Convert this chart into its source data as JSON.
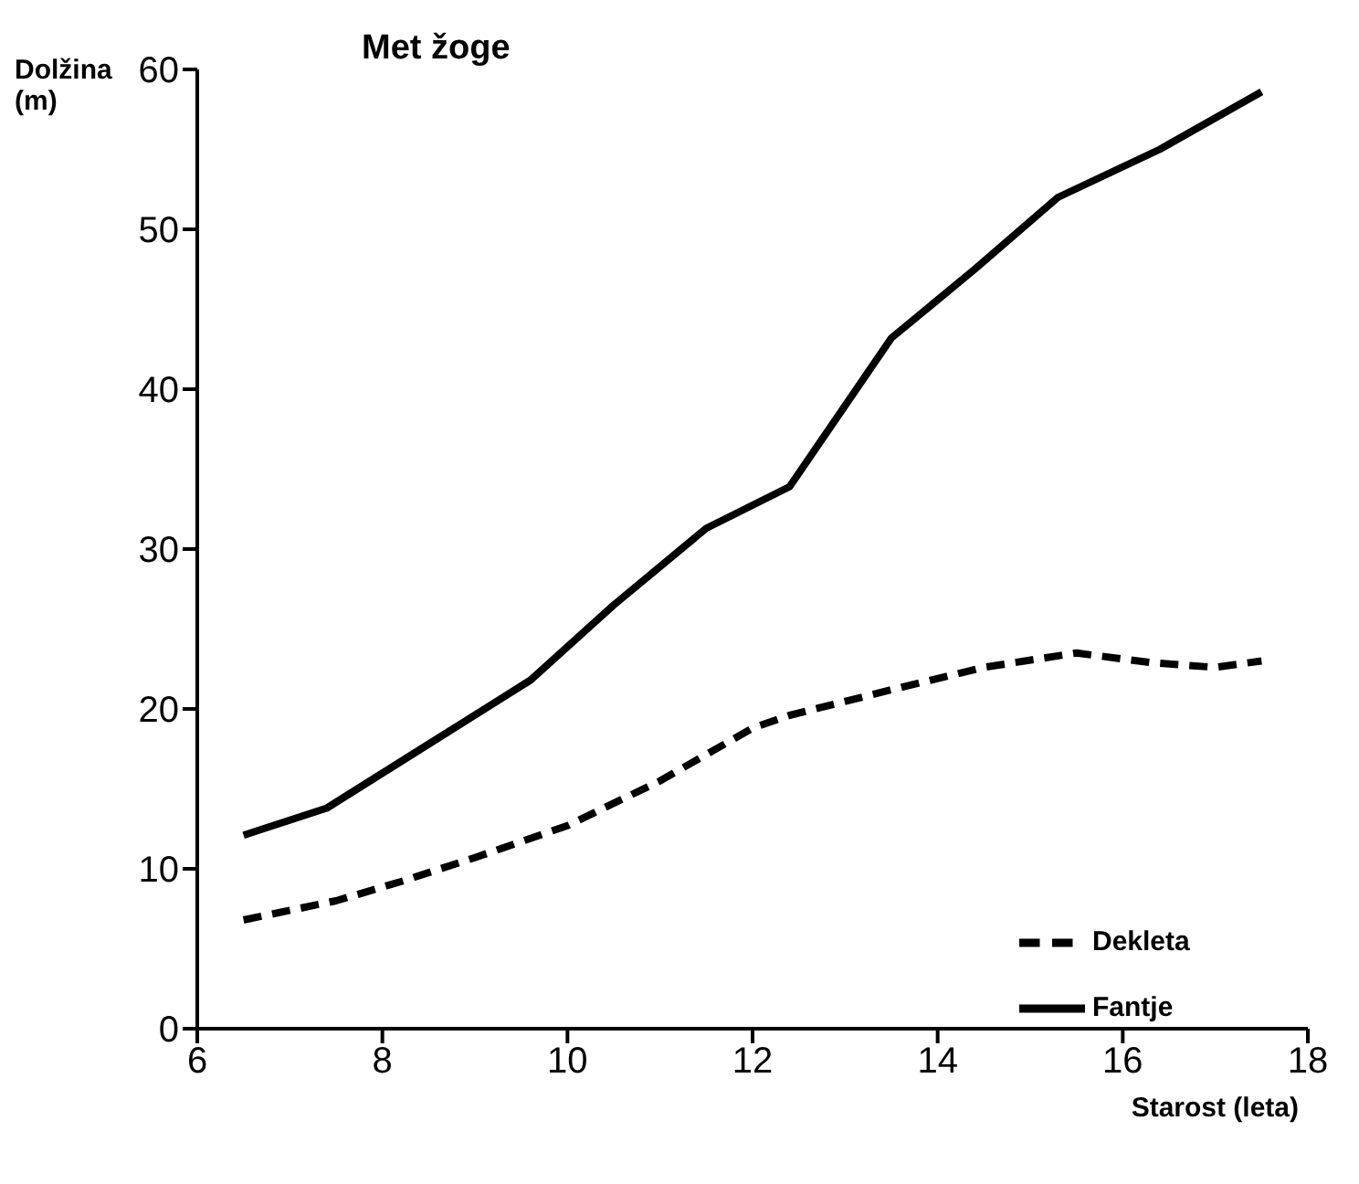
{
  "chart_data": {
    "type": "line",
    "title": "Met žoge",
    "ylabel": "Dolžina (m)",
    "xlabel": "Starost (leta)",
    "xlim": [
      6,
      18
    ],
    "xticks": [
      6,
      8,
      10,
      12,
      14,
      16,
      18
    ],
    "ylim": [
      0,
      60
    ],
    "yticks": [
      0,
      10,
      20,
      30,
      40,
      50,
      60
    ],
    "grid": false,
    "legend": "bottom right",
    "marker": "none",
    "series": [
      {
        "name": "Fantje",
        "color": "#000000",
        "line_style": "solid",
        "x": [
          6.5,
          7.4,
          8.5,
          9.6,
          10.5,
          11.5,
          12.4,
          13.5,
          14.4,
          15.3,
          16.4,
          17.5
        ],
        "values": [
          12.1,
          13.8,
          17.8,
          21.8,
          26.5,
          31.3,
          33.9,
          43.2,
          47.5,
          52,
          55,
          58.6
        ]
      },
      {
        "name": "Dekleta",
        "color": "#000000",
        "line_style": "dashed",
        "x": [
          6.5,
          7.5,
          8.2,
          9,
          10,
          11,
          12,
          12.4,
          13.5,
          14.5,
          15.5,
          16.3,
          17,
          17.5
        ],
        "values": [
          6.8,
          8,
          9.2,
          10.7,
          12.7,
          15.5,
          18.8,
          19.6,
          21.2,
          22.6,
          23.5,
          22.9,
          22.6,
          23
        ]
      }
    ]
  }
}
